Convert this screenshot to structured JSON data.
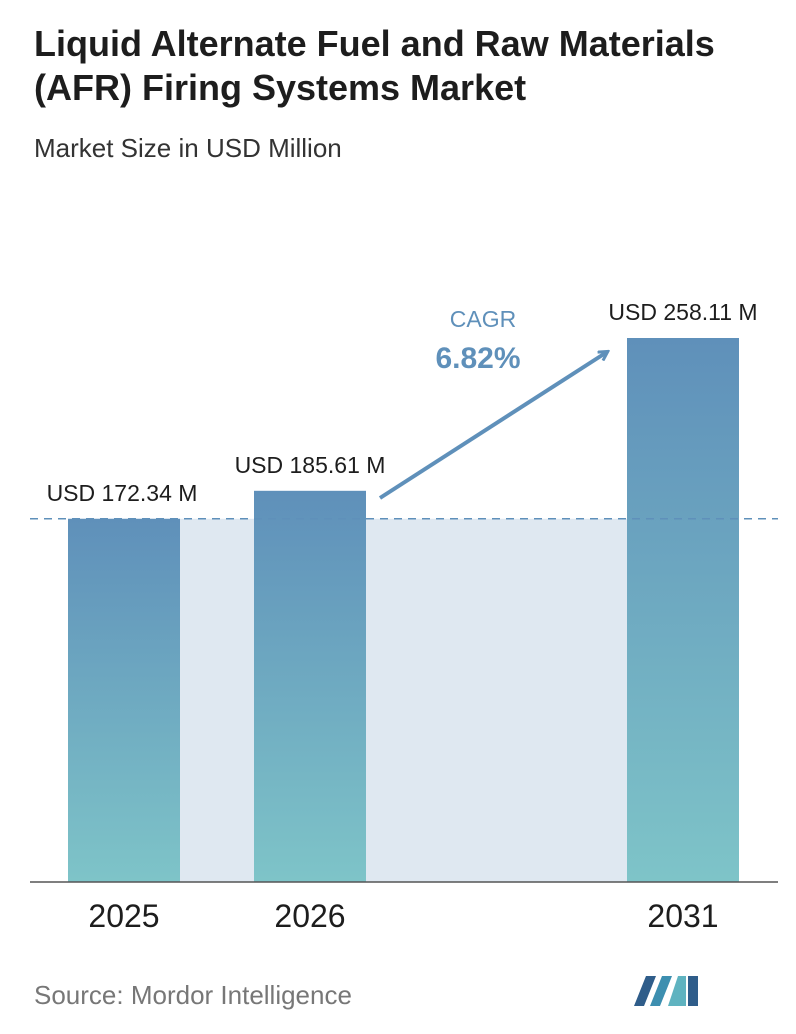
{
  "colors": {
    "bar_top": "#5f90ba",
    "bar_bottom": "#7ec4c8",
    "band": "#dfe8f1",
    "baseline_dash": "#5f90ba",
    "arrow": "#5f90ba",
    "cagr_text": "#5f90ba"
  },
  "chart_data": {
    "type": "bar",
    "title": "Liquid Alternate Fuel and Raw Materials (AFR) Firing Systems Market",
    "subtitle": "Market Size in USD Million",
    "categories": [
      "2025",
      "2026",
      "2031"
    ],
    "values": [
      172.34,
      185.61,
      258.11
    ],
    "value_labels": [
      "USD 172.34 M",
      "USD 185.61 M",
      "USD 258.11 M"
    ],
    "ylim": [
      0,
      258.11
    ],
    "grid": false,
    "annotation": {
      "label": "CAGR",
      "value": "6.82%"
    }
  },
  "source": "Source:  Mordor Intelligence",
  "logo_icon": "mordor-intelligence-logo-icon"
}
